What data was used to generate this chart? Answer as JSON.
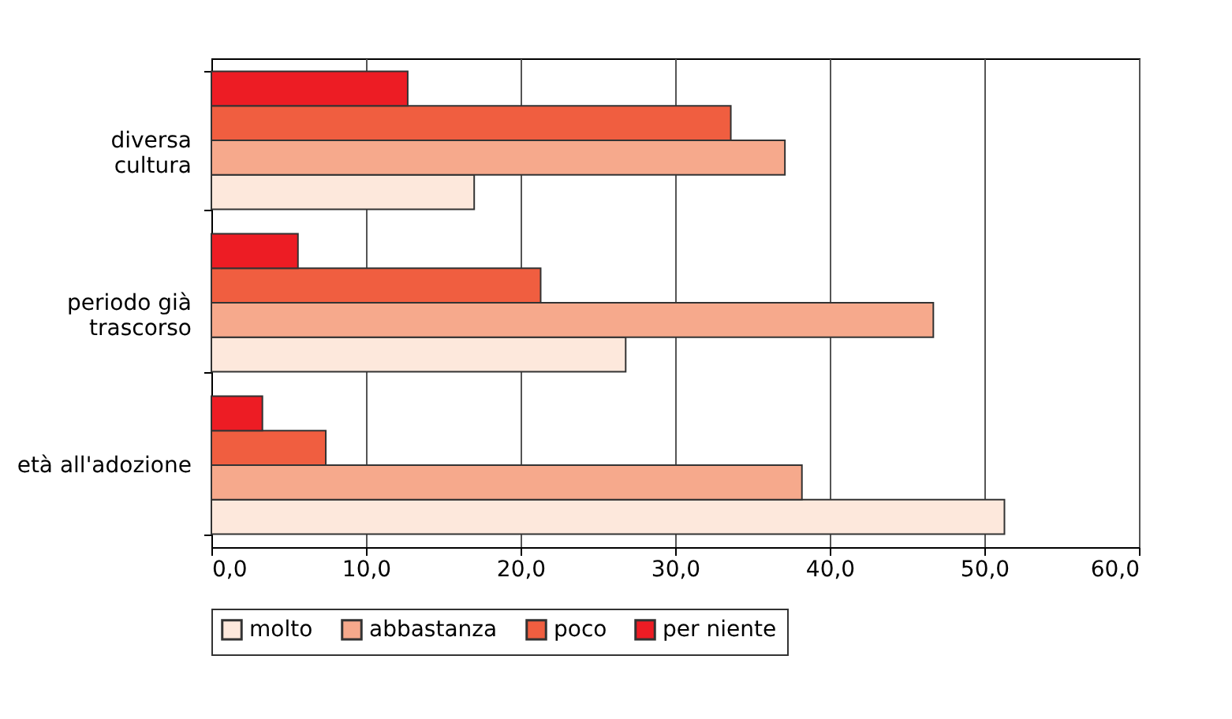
{
  "chart_data": {
    "type": "bar",
    "orientation": "horizontal",
    "categories": [
      "diversa\ncultura",
      "periodo già\ntrascorso",
      "età all'adozione"
    ],
    "series": [
      {
        "name": "molto",
        "color": "#fde8dc",
        "values": [
          17.0,
          26.8,
          51.3
        ]
      },
      {
        "name": "abbastanza",
        "color": "#f6a98c",
        "values": [
          37.1,
          46.7,
          38.2
        ]
      },
      {
        "name": "poco",
        "color": "#f05e40",
        "values": [
          33.6,
          21.3,
          7.4
        ]
      },
      {
        "name": "per niente",
        "color": "#ed1c24",
        "values": [
          12.7,
          5.6,
          3.3
        ]
      }
    ],
    "xlim": [
      0,
      60
    ],
    "xticks": [
      {
        "value": 0,
        "label": "0,0"
      },
      {
        "value": 10,
        "label": "10,0"
      },
      {
        "value": 20,
        "label": "20,0"
      },
      {
        "value": 30,
        "label": "30,0"
      },
      {
        "value": 40,
        "label": "40,0"
      },
      {
        "value": 50,
        "label": "50,0"
      },
      {
        "value": 60,
        "label": "60,0"
      }
    ],
    "grid": "x",
    "legend": "bottom"
  }
}
